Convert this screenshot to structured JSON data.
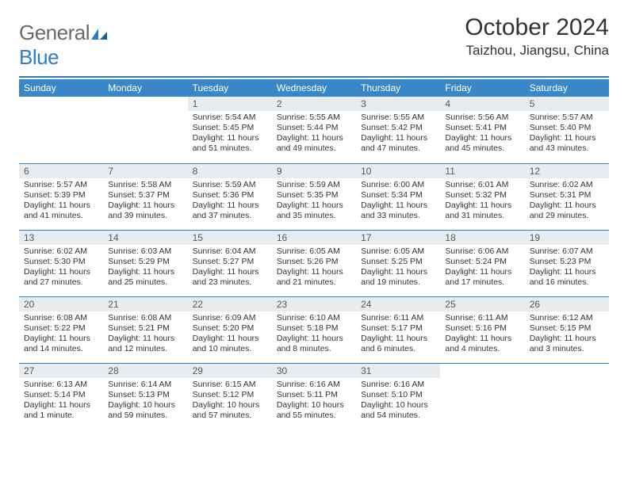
{
  "brand": {
    "part1": "General",
    "part2": "Blue"
  },
  "title": "October 2024",
  "location": "Taizhou, Jiangsu, China",
  "colors": {
    "accent": "#3a87c8",
    "rule": "#2f7ec2",
    "daynum_bg": "#e9ecef",
    "text": "#333333"
  },
  "weekdays": [
    "Sunday",
    "Monday",
    "Tuesday",
    "Wednesday",
    "Thursday",
    "Friday",
    "Saturday"
  ],
  "weeks": [
    [
      null,
      null,
      {
        "n": "1",
        "sr": "5:54 AM",
        "ss": "5:45 PM",
        "dl": "11 hours and 51 minutes."
      },
      {
        "n": "2",
        "sr": "5:55 AM",
        "ss": "5:44 PM",
        "dl": "11 hours and 49 minutes."
      },
      {
        "n": "3",
        "sr": "5:55 AM",
        "ss": "5:42 PM",
        "dl": "11 hours and 47 minutes."
      },
      {
        "n": "4",
        "sr": "5:56 AM",
        "ss": "5:41 PM",
        "dl": "11 hours and 45 minutes."
      },
      {
        "n": "5",
        "sr": "5:57 AM",
        "ss": "5:40 PM",
        "dl": "11 hours and 43 minutes."
      }
    ],
    [
      {
        "n": "6",
        "sr": "5:57 AM",
        "ss": "5:39 PM",
        "dl": "11 hours and 41 minutes."
      },
      {
        "n": "7",
        "sr": "5:58 AM",
        "ss": "5:37 PM",
        "dl": "11 hours and 39 minutes."
      },
      {
        "n": "8",
        "sr": "5:59 AM",
        "ss": "5:36 PM",
        "dl": "11 hours and 37 minutes."
      },
      {
        "n": "9",
        "sr": "5:59 AM",
        "ss": "5:35 PM",
        "dl": "11 hours and 35 minutes."
      },
      {
        "n": "10",
        "sr": "6:00 AM",
        "ss": "5:34 PM",
        "dl": "11 hours and 33 minutes."
      },
      {
        "n": "11",
        "sr": "6:01 AM",
        "ss": "5:32 PM",
        "dl": "11 hours and 31 minutes."
      },
      {
        "n": "12",
        "sr": "6:02 AM",
        "ss": "5:31 PM",
        "dl": "11 hours and 29 minutes."
      }
    ],
    [
      {
        "n": "13",
        "sr": "6:02 AM",
        "ss": "5:30 PM",
        "dl": "11 hours and 27 minutes."
      },
      {
        "n": "14",
        "sr": "6:03 AM",
        "ss": "5:29 PM",
        "dl": "11 hours and 25 minutes."
      },
      {
        "n": "15",
        "sr": "6:04 AM",
        "ss": "5:27 PM",
        "dl": "11 hours and 23 minutes."
      },
      {
        "n": "16",
        "sr": "6:05 AM",
        "ss": "5:26 PM",
        "dl": "11 hours and 21 minutes."
      },
      {
        "n": "17",
        "sr": "6:05 AM",
        "ss": "5:25 PM",
        "dl": "11 hours and 19 minutes."
      },
      {
        "n": "18",
        "sr": "6:06 AM",
        "ss": "5:24 PM",
        "dl": "11 hours and 17 minutes."
      },
      {
        "n": "19",
        "sr": "6:07 AM",
        "ss": "5:23 PM",
        "dl": "11 hours and 16 minutes."
      }
    ],
    [
      {
        "n": "20",
        "sr": "6:08 AM",
        "ss": "5:22 PM",
        "dl": "11 hours and 14 minutes."
      },
      {
        "n": "21",
        "sr": "6:08 AM",
        "ss": "5:21 PM",
        "dl": "11 hours and 12 minutes."
      },
      {
        "n": "22",
        "sr": "6:09 AM",
        "ss": "5:20 PM",
        "dl": "11 hours and 10 minutes."
      },
      {
        "n": "23",
        "sr": "6:10 AM",
        "ss": "5:18 PM",
        "dl": "11 hours and 8 minutes."
      },
      {
        "n": "24",
        "sr": "6:11 AM",
        "ss": "5:17 PM",
        "dl": "11 hours and 6 minutes."
      },
      {
        "n": "25",
        "sr": "6:11 AM",
        "ss": "5:16 PM",
        "dl": "11 hours and 4 minutes."
      },
      {
        "n": "26",
        "sr": "6:12 AM",
        "ss": "5:15 PM",
        "dl": "11 hours and 3 minutes."
      }
    ],
    [
      {
        "n": "27",
        "sr": "6:13 AM",
        "ss": "5:14 PM",
        "dl": "11 hours and 1 minute."
      },
      {
        "n": "28",
        "sr": "6:14 AM",
        "ss": "5:13 PM",
        "dl": "10 hours and 59 minutes."
      },
      {
        "n": "29",
        "sr": "6:15 AM",
        "ss": "5:12 PM",
        "dl": "10 hours and 57 minutes."
      },
      {
        "n": "30",
        "sr": "6:16 AM",
        "ss": "5:11 PM",
        "dl": "10 hours and 55 minutes."
      },
      {
        "n": "31",
        "sr": "6:16 AM",
        "ss": "5:10 PM",
        "dl": "10 hours and 54 minutes."
      },
      null,
      null
    ]
  ],
  "labels": {
    "sunrise": "Sunrise:",
    "sunset": "Sunset:",
    "daylight": "Daylight:"
  }
}
